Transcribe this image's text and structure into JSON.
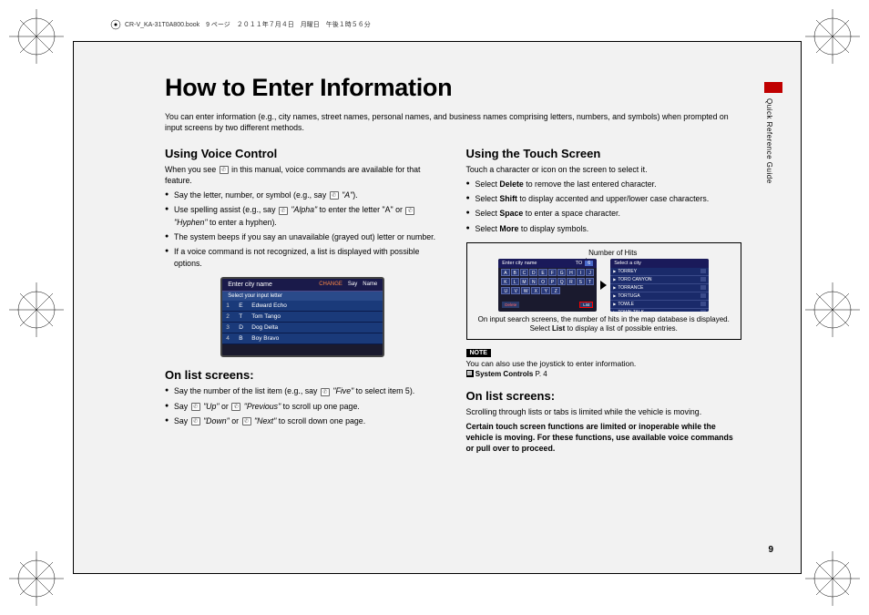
{
  "docHeader": "CR-V_KA-31T0A800.book　9 ページ　２０１１年７月４日　月曜日　午後１時５６分",
  "title": "How to Enter Information",
  "intro": "You can enter information (e.g., city names, street names, personal names, and business names comprising letters, numbers, and symbols) when prompted on input screens by two different methods.",
  "voice": {
    "heading": "Using Voice Control",
    "intro1": "When you see ",
    "intro2": " in this manual, voice commands are available for that feature.",
    "items": [
      {
        "pre": "Say the letter, number, or symbol (e.g., say ",
        "quote": "\"A\"",
        "post": ")."
      },
      {
        "pre": "Use spelling assist (e.g., say ",
        "quote": "\"Alpha\"",
        "mid": " to enter the letter \"A\" or ",
        "quote2": "\"Hyphen\"",
        "post": " to enter a hyphen)."
      },
      {
        "text": "The system beeps if you say an unavailable (grayed out) letter or number."
      },
      {
        "text": "If a voice command is not recognized, a list is displayed with possible options."
      }
    ],
    "screen": {
      "title": "Enter city name",
      "btnChange": "CHANGE",
      "btnSay": "Say",
      "btnName": "Name",
      "subtitle": "Select your input letter",
      "rows": [
        {
          "n": "1",
          "l": "E",
          "t": "Edward Echo"
        },
        {
          "n": "2",
          "l": "T",
          "t": "Tom Tango"
        },
        {
          "n": "3",
          "l": "D",
          "t": "Dog Delta"
        },
        {
          "n": "4",
          "l": "B",
          "t": "Boy Bravo"
        }
      ]
    }
  },
  "onList1": {
    "heading": "On list screens:",
    "items": [
      {
        "pre": "Say the number of the list item (e.g., say ",
        "quote": "\"Five\"",
        "post": " to select item 5)."
      },
      {
        "pre": "Say ",
        "quote": "\"Up\"",
        "mid": " or ",
        "quote2": "\"Previous\"",
        "post": " to scroll up one page."
      },
      {
        "pre": "Say ",
        "quote": "\"Down\"",
        "mid": " or ",
        "quote2": "\"Next\"",
        "post": " to scroll down one page."
      }
    ]
  },
  "touch": {
    "heading": "Using the Touch Screen",
    "intro": "Touch a character or icon on the screen to select it.",
    "items": [
      {
        "pre": "Select ",
        "bold": "Delete",
        "post": " to remove the last entered character."
      },
      {
        "pre": "Select ",
        "bold": "Shift",
        "post": " to display accented and upper/lower case characters."
      },
      {
        "pre": "Select ",
        "bold": "Space",
        "post": " to enter a space character."
      },
      {
        "pre": "Select ",
        "bold": "More",
        "post": " to display symbols."
      }
    ],
    "box": {
      "topLabel": "Number of Hits",
      "leftScreen": {
        "title": "Enter city name",
        "entered": "TO",
        "hits": "6",
        "kbdRows": [
          [
            "A",
            "B",
            "C",
            "D",
            "E",
            "F",
            "G",
            "H",
            "I",
            "J"
          ],
          [
            "K",
            "L",
            "M",
            "N",
            "O",
            "P",
            "Q",
            "R",
            "S",
            "T"
          ],
          [
            "U",
            "V",
            "W",
            "X",
            "Y",
            "Z"
          ]
        ],
        "btnDelete": "Delete",
        "btnList": "List"
      },
      "rightScreen": {
        "title": "Select a city",
        "rows": [
          "TORREY",
          "TORO CANYON",
          "TORRANCE",
          "TORTUGA",
          "TOWLE",
          "TOWN TALK"
        ]
      },
      "caption1": "On input search screens, the number of hits in the map database is displayed. Select ",
      "captionBold": "List",
      "caption2": " to display a list of possible entries."
    },
    "noteLabel": "NOTE",
    "noteText": "You can also use the joystick to enter information.",
    "refText": "System Controls",
    "refPage": "P. 4"
  },
  "onList2": {
    "heading": "On list screens:",
    "intro": "Scrolling through lists or tabs is limited while the vehicle is moving.",
    "warning": "Certain touch screen functions are limited or inoperable while the vehicle is moving. For these functions, use available voice commands or pull over to proceed."
  },
  "sideLabel": "Quick Reference Guide",
  "pageNum": "9",
  "colors": {
    "pageBackground": "#f2f2f2",
    "sideTab": "#c00000",
    "screenBg": "#1a1a2e",
    "screenHeader": "#1a1a4a",
    "screenRow": "#1a3a7a"
  }
}
